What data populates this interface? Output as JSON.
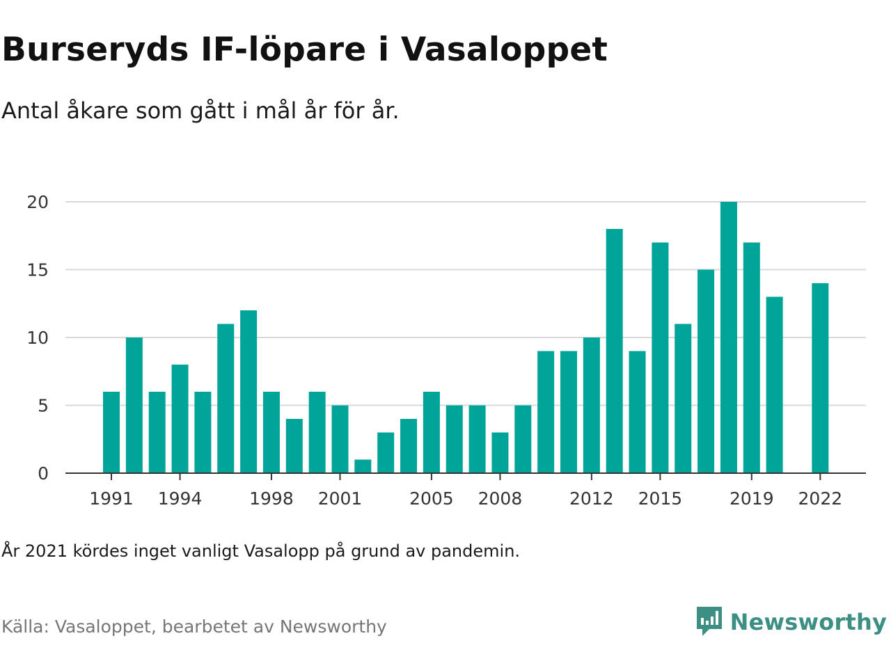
{
  "header": {
    "title": "Burseryds IF-löpare i Vasaloppet",
    "subtitle": "Antal åkare som gått i mål år för år."
  },
  "note": "År 2021 kördes inget vanligt Vasalopp på grund av pandemin.",
  "source": "Källa: Vasaloppet, bearbetet av Newsworthy",
  "brand": {
    "name": "Newsworthy",
    "icon": "newsworthy-logo-icon",
    "color": "#3e8f83"
  },
  "chart_data": {
    "type": "bar",
    "color": "#00a498",
    "categories": [
      1991,
      1992,
      1993,
      1994,
      1995,
      1996,
      1997,
      1998,
      1999,
      2000,
      2001,
      2002,
      2003,
      2004,
      2005,
      2006,
      2007,
      2008,
      2009,
      2010,
      2011,
      2012,
      2013,
      2014,
      2015,
      2016,
      2017,
      2018,
      2019,
      2020,
      2021,
      2022
    ],
    "values": [
      6,
      10,
      6,
      8,
      6,
      11,
      12,
      6,
      4,
      6,
      5,
      1,
      3,
      4,
      6,
      5,
      5,
      3,
      5,
      9,
      9,
      10,
      18,
      9,
      17,
      11,
      15,
      20,
      17,
      13,
      null,
      14
    ],
    "x_tick_labels": [
      "1991",
      "1994",
      "1998",
      "2001",
      "2005",
      "2008",
      "2012",
      "2015",
      "2019",
      "2022"
    ],
    "y_ticks": [
      0,
      5,
      10,
      15,
      20
    ],
    "ylim": [
      0,
      20
    ],
    "grid": true
  }
}
